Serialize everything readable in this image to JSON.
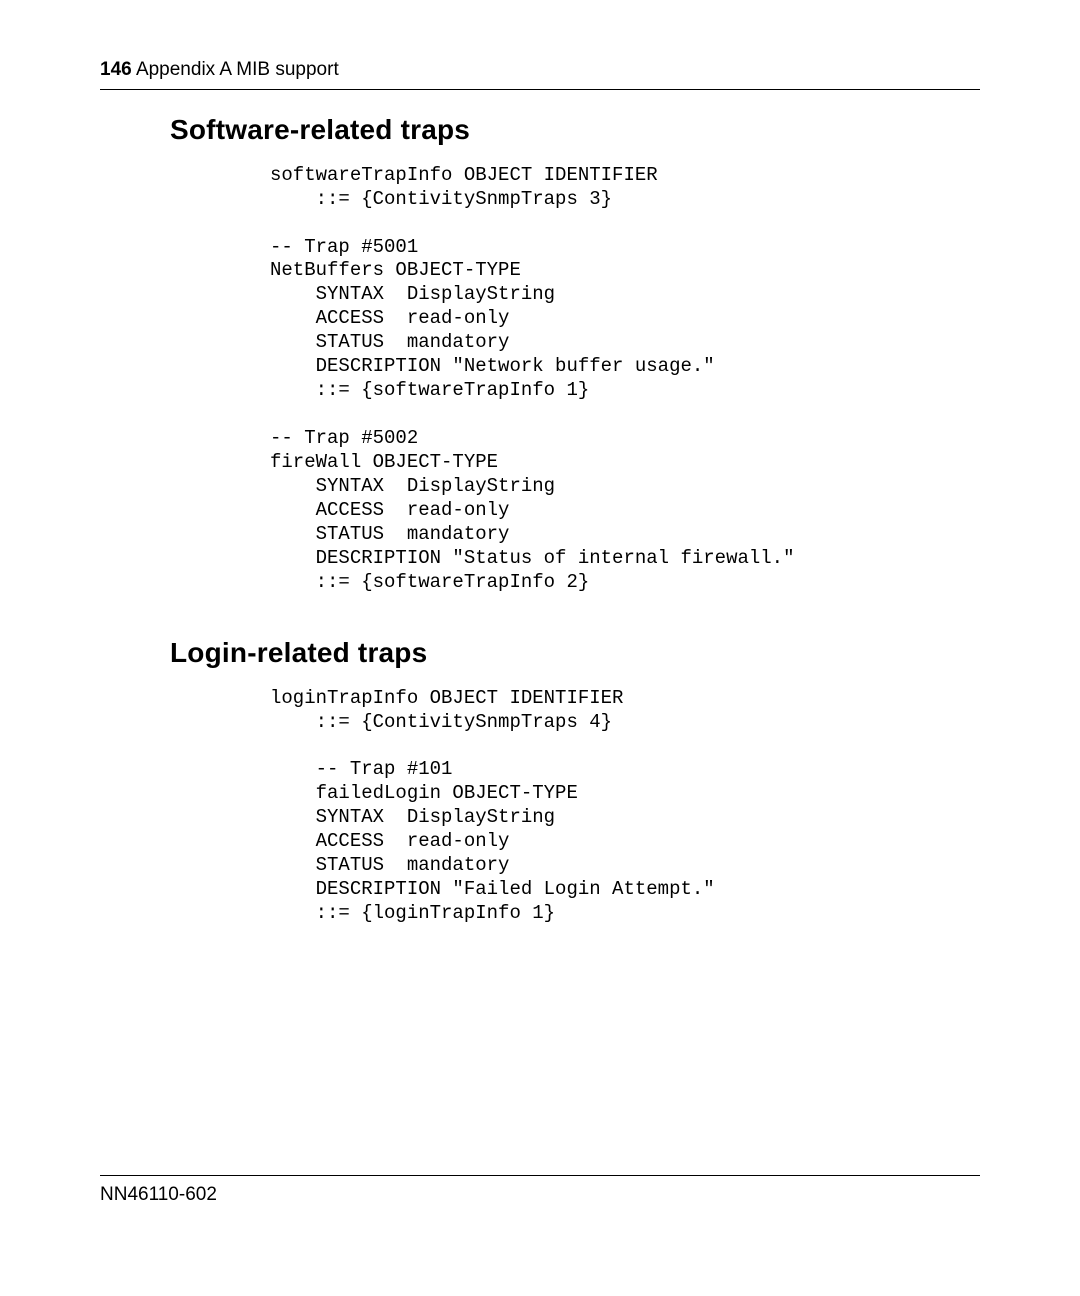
{
  "header": {
    "page_number": "146",
    "title": "Appendix A  MIB support"
  },
  "sections": {
    "software": {
      "title": "Software-related traps",
      "code": "softwareTrapInfo OBJECT IDENTIFIER\n    ::= {ContivitySnmpTraps 3}\n\n-- Trap #5001\nNetBuffers OBJECT-TYPE\n    SYNTAX  DisplayString\n    ACCESS  read-only\n    STATUS  mandatory\n    DESCRIPTION \"Network buffer usage.\"\n    ::= {softwareTrapInfo 1}\n\n-- Trap #5002\nfireWall OBJECT-TYPE\n    SYNTAX  DisplayString\n    ACCESS  read-only\n    STATUS  mandatory\n    DESCRIPTION \"Status of internal firewall.\"\n    ::= {softwareTrapInfo 2}"
    },
    "login": {
      "title": "Login-related traps",
      "code": "loginTrapInfo OBJECT IDENTIFIER\n    ::= {ContivitySnmpTraps 4}\n\n    -- Trap #101\n    failedLogin OBJECT-TYPE\n    SYNTAX  DisplayString\n    ACCESS  read-only\n    STATUS  mandatory\n    DESCRIPTION \"Failed Login Attempt.\"\n    ::= {loginTrapInfo 1}"
    }
  },
  "footer": {
    "doc_number": "NN46110-602"
  }
}
